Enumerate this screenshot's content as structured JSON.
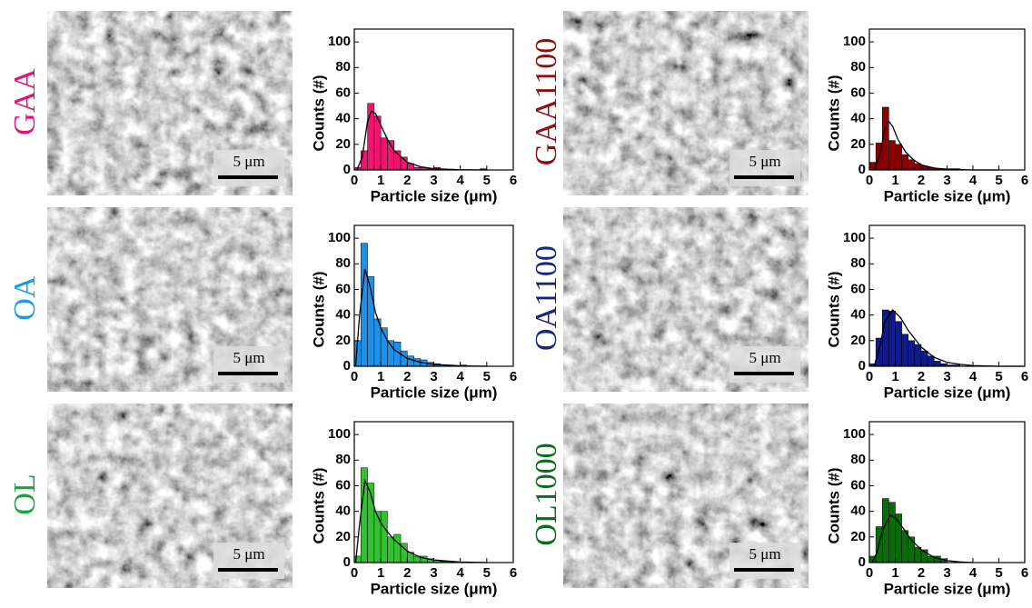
{
  "chart_data": [
    {
      "type": "histogram",
      "label": "GAA",
      "label_color": "#e0137a",
      "scale_bar": "5 μm",
      "color": "#f0136f",
      "xlabel": "Particle size (μm)",
      "ylabel": "Counts (#)",
      "bins": [
        0,
        0.25,
        0.5,
        0.75,
        1,
        1.25,
        1.5,
        1.75,
        2,
        2.25,
        2.5,
        2.75,
        3,
        3.25,
        3.5,
        3.75,
        4,
        4.25,
        4.5,
        4.75,
        5
      ],
      "counts": [
        2,
        15,
        52,
        42,
        25,
        23,
        15,
        10,
        5,
        2,
        2,
        1,
        2,
        0,
        0,
        0,
        0,
        0,
        0,
        1
      ],
      "fit": {
        "x": [
          0.1,
          0.3,
          0.5,
          0.65,
          0.8,
          1,
          1.25,
          1.5,
          2,
          2.5,
          3,
          4,
          5
        ],
        "values": [
          0,
          10,
          38,
          46,
          44,
          35,
          24,
          15,
          6,
          2.5,
          1,
          0.2,
          0
        ]
      },
      "xlim": [
        0,
        6
      ],
      "ylim": [
        0,
        110
      ],
      "xticks": [
        0,
        1,
        2,
        3,
        4,
        5,
        6
      ],
      "yticks": [
        0,
        20,
        40,
        60,
        80,
        100
      ]
    },
    {
      "type": "histogram",
      "label": "OA",
      "label_color": "#1e9be0",
      "scale_bar": "5 μm",
      "color": "#1e90e8",
      "xlabel": "Particle size (μm)",
      "ylabel": "Counts (#)",
      "bins": [
        0,
        0.25,
        0.5,
        0.75,
        1,
        1.25,
        1.5,
        1.75,
        2,
        2.25,
        2.5,
        2.75,
        3,
        3.25,
        3.5,
        3.75,
        4,
        4.25,
        4.5,
        4.75,
        5
      ],
      "counts": [
        20,
        96,
        70,
        37,
        30,
        20,
        19,
        12,
        8,
        6,
        5,
        3,
        2,
        1,
        1,
        0,
        1,
        0,
        0,
        0
      ],
      "fit": {
        "x": [
          0.05,
          0.2,
          0.4,
          0.6,
          0.8,
          1,
          1.25,
          1.5,
          2,
          2.5,
          3,
          4,
          5
        ],
        "values": [
          0,
          40,
          76,
          62,
          42,
          30,
          20,
          13,
          6,
          3,
          1.5,
          0.3,
          0
        ]
      },
      "xlim": [
        0,
        6
      ],
      "ylim": [
        0,
        110
      ],
      "xticks": [
        0,
        1,
        2,
        3,
        4,
        5,
        6
      ],
      "yticks": [
        0,
        20,
        40,
        60,
        80,
        100
      ]
    },
    {
      "type": "histogram",
      "label": "OL",
      "label_color": "#1fa040",
      "scale_bar": "5 μm",
      "color": "#33c033",
      "xlabel": "Particle size (μm)",
      "ylabel": "Counts (#)",
      "bins": [
        0,
        0.25,
        0.5,
        0.75,
        1,
        1.25,
        1.5,
        1.75,
        2,
        2.25,
        2.5,
        2.75,
        3,
        3.25,
        3.5,
        3.75,
        4,
        4.25,
        4.5,
        4.75,
        5
      ],
      "counts": [
        5,
        74,
        62,
        40,
        40,
        20,
        22,
        15,
        8,
        5,
        5,
        3,
        2,
        1,
        1,
        0,
        0,
        0,
        0,
        0
      ],
      "fit": {
        "x": [
          0.05,
          0.2,
          0.4,
          0.6,
          0.8,
          1,
          1.25,
          1.5,
          2,
          2.5,
          3,
          4,
          5
        ],
        "values": [
          0,
          30,
          64,
          55,
          40,
          31,
          24,
          18,
          9,
          4,
          2,
          0.4,
          0
        ]
      },
      "xlim": [
        0,
        6
      ],
      "ylim": [
        0,
        110
      ],
      "xticks": [
        0,
        1,
        2,
        3,
        4,
        5,
        6
      ],
      "yticks": [
        0,
        20,
        40,
        60,
        80,
        100
      ]
    },
    {
      "type": "histogram",
      "label": "GAA1100",
      "label_color": "#8b1010",
      "scale_bar": "5 μm",
      "color": "#8b0000",
      "xlabel": "Particle size (μm)",
      "ylabel": "Counts (#)",
      "bins": [
        0,
        0.25,
        0.5,
        0.75,
        1,
        1.25,
        1.5,
        1.75,
        2,
        2.25,
        2.5,
        2.75,
        3,
        3.25,
        3.5,
        3.75
      ],
      "counts": [
        6,
        21,
        49,
        23,
        20,
        12,
        8,
        5,
        3,
        2,
        1,
        1,
        1,
        1,
        0
      ],
      "fit": {
        "x": [
          0.2,
          0.4,
          0.6,
          0.75,
          0.9,
          1.1,
          1.4,
          1.7,
          2,
          2.5,
          3,
          4,
          5
        ],
        "values": [
          0,
          12,
          32,
          38,
          34,
          24,
          14,
          8,
          4,
          1.5,
          0.5,
          0,
          0
        ]
      },
      "xlim": [
        0,
        6
      ],
      "ylim": [
        0,
        110
      ],
      "xticks": [
        0,
        1,
        2,
        3,
        4,
        5,
        6
      ],
      "yticks": [
        0,
        20,
        40,
        60,
        80,
        100
      ]
    },
    {
      "type": "histogram",
      "label": "OA1100",
      "label_color": "#1a237e",
      "scale_bar": "5 μm",
      "color": "#101a8a",
      "xlabel": "Particle size (μm)",
      "ylabel": "Counts (#)",
      "bins": [
        0,
        0.25,
        0.5,
        0.75,
        1,
        1.25,
        1.5,
        1.75,
        2,
        2.25,
        2.5,
        2.75,
        3,
        3.25,
        3.5,
        3.75,
        4
      ],
      "counts": [
        2,
        22,
        44,
        43,
        35,
        25,
        20,
        17,
        12,
        8,
        4,
        2,
        1,
        1,
        0,
        0
      ],
      "fit": {
        "x": [
          0.2,
          0.4,
          0.6,
          0.9,
          1.2,
          1.5,
          2,
          2.5,
          3,
          3.5,
          4,
          5,
          6
        ],
        "values": [
          1,
          15,
          35,
          44,
          38,
          28,
          15,
          7,
          3,
          1.5,
          0.5,
          0,
          0
        ]
      },
      "xlim": [
        0,
        6
      ],
      "ylim": [
        0,
        110
      ],
      "xticks": [
        0,
        1,
        2,
        3,
        4,
        5,
        6
      ],
      "yticks": [
        0,
        20,
        40,
        60,
        80,
        100
      ]
    },
    {
      "type": "histogram",
      "label": "OL1000",
      "label_color": "#0b6b1e",
      "scale_bar": "5 μm",
      "color": "#0a6b0a",
      "xlabel": "Particle size (μm)",
      "ylabel": "Counts (#)",
      "bins": [
        0,
        0.25,
        0.5,
        0.75,
        1,
        1.25,
        1.5,
        1.75,
        2,
        2.25,
        2.5,
        2.75,
        3,
        3.25
      ],
      "counts": [
        5,
        28,
        50,
        47,
        38,
        25,
        20,
        12,
        10,
        5,
        5,
        3,
        0
      ],
      "fit": {
        "x": [
          0.1,
          0.3,
          0.5,
          0.8,
          1,
          1.3,
          1.6,
          2,
          2.5,
          3,
          3.5,
          4
        ],
        "values": [
          0,
          8,
          25,
          37,
          35,
          27,
          18,
          10,
          4,
          1.5,
          0.5,
          0
        ]
      },
      "xlim": [
        0,
        6
      ],
      "ylim": [
        0,
        110
      ],
      "xticks": [
        0,
        1,
        2,
        3,
        4,
        5,
        6
      ],
      "yticks": [
        0,
        20,
        40,
        60,
        80,
        100
      ]
    }
  ]
}
